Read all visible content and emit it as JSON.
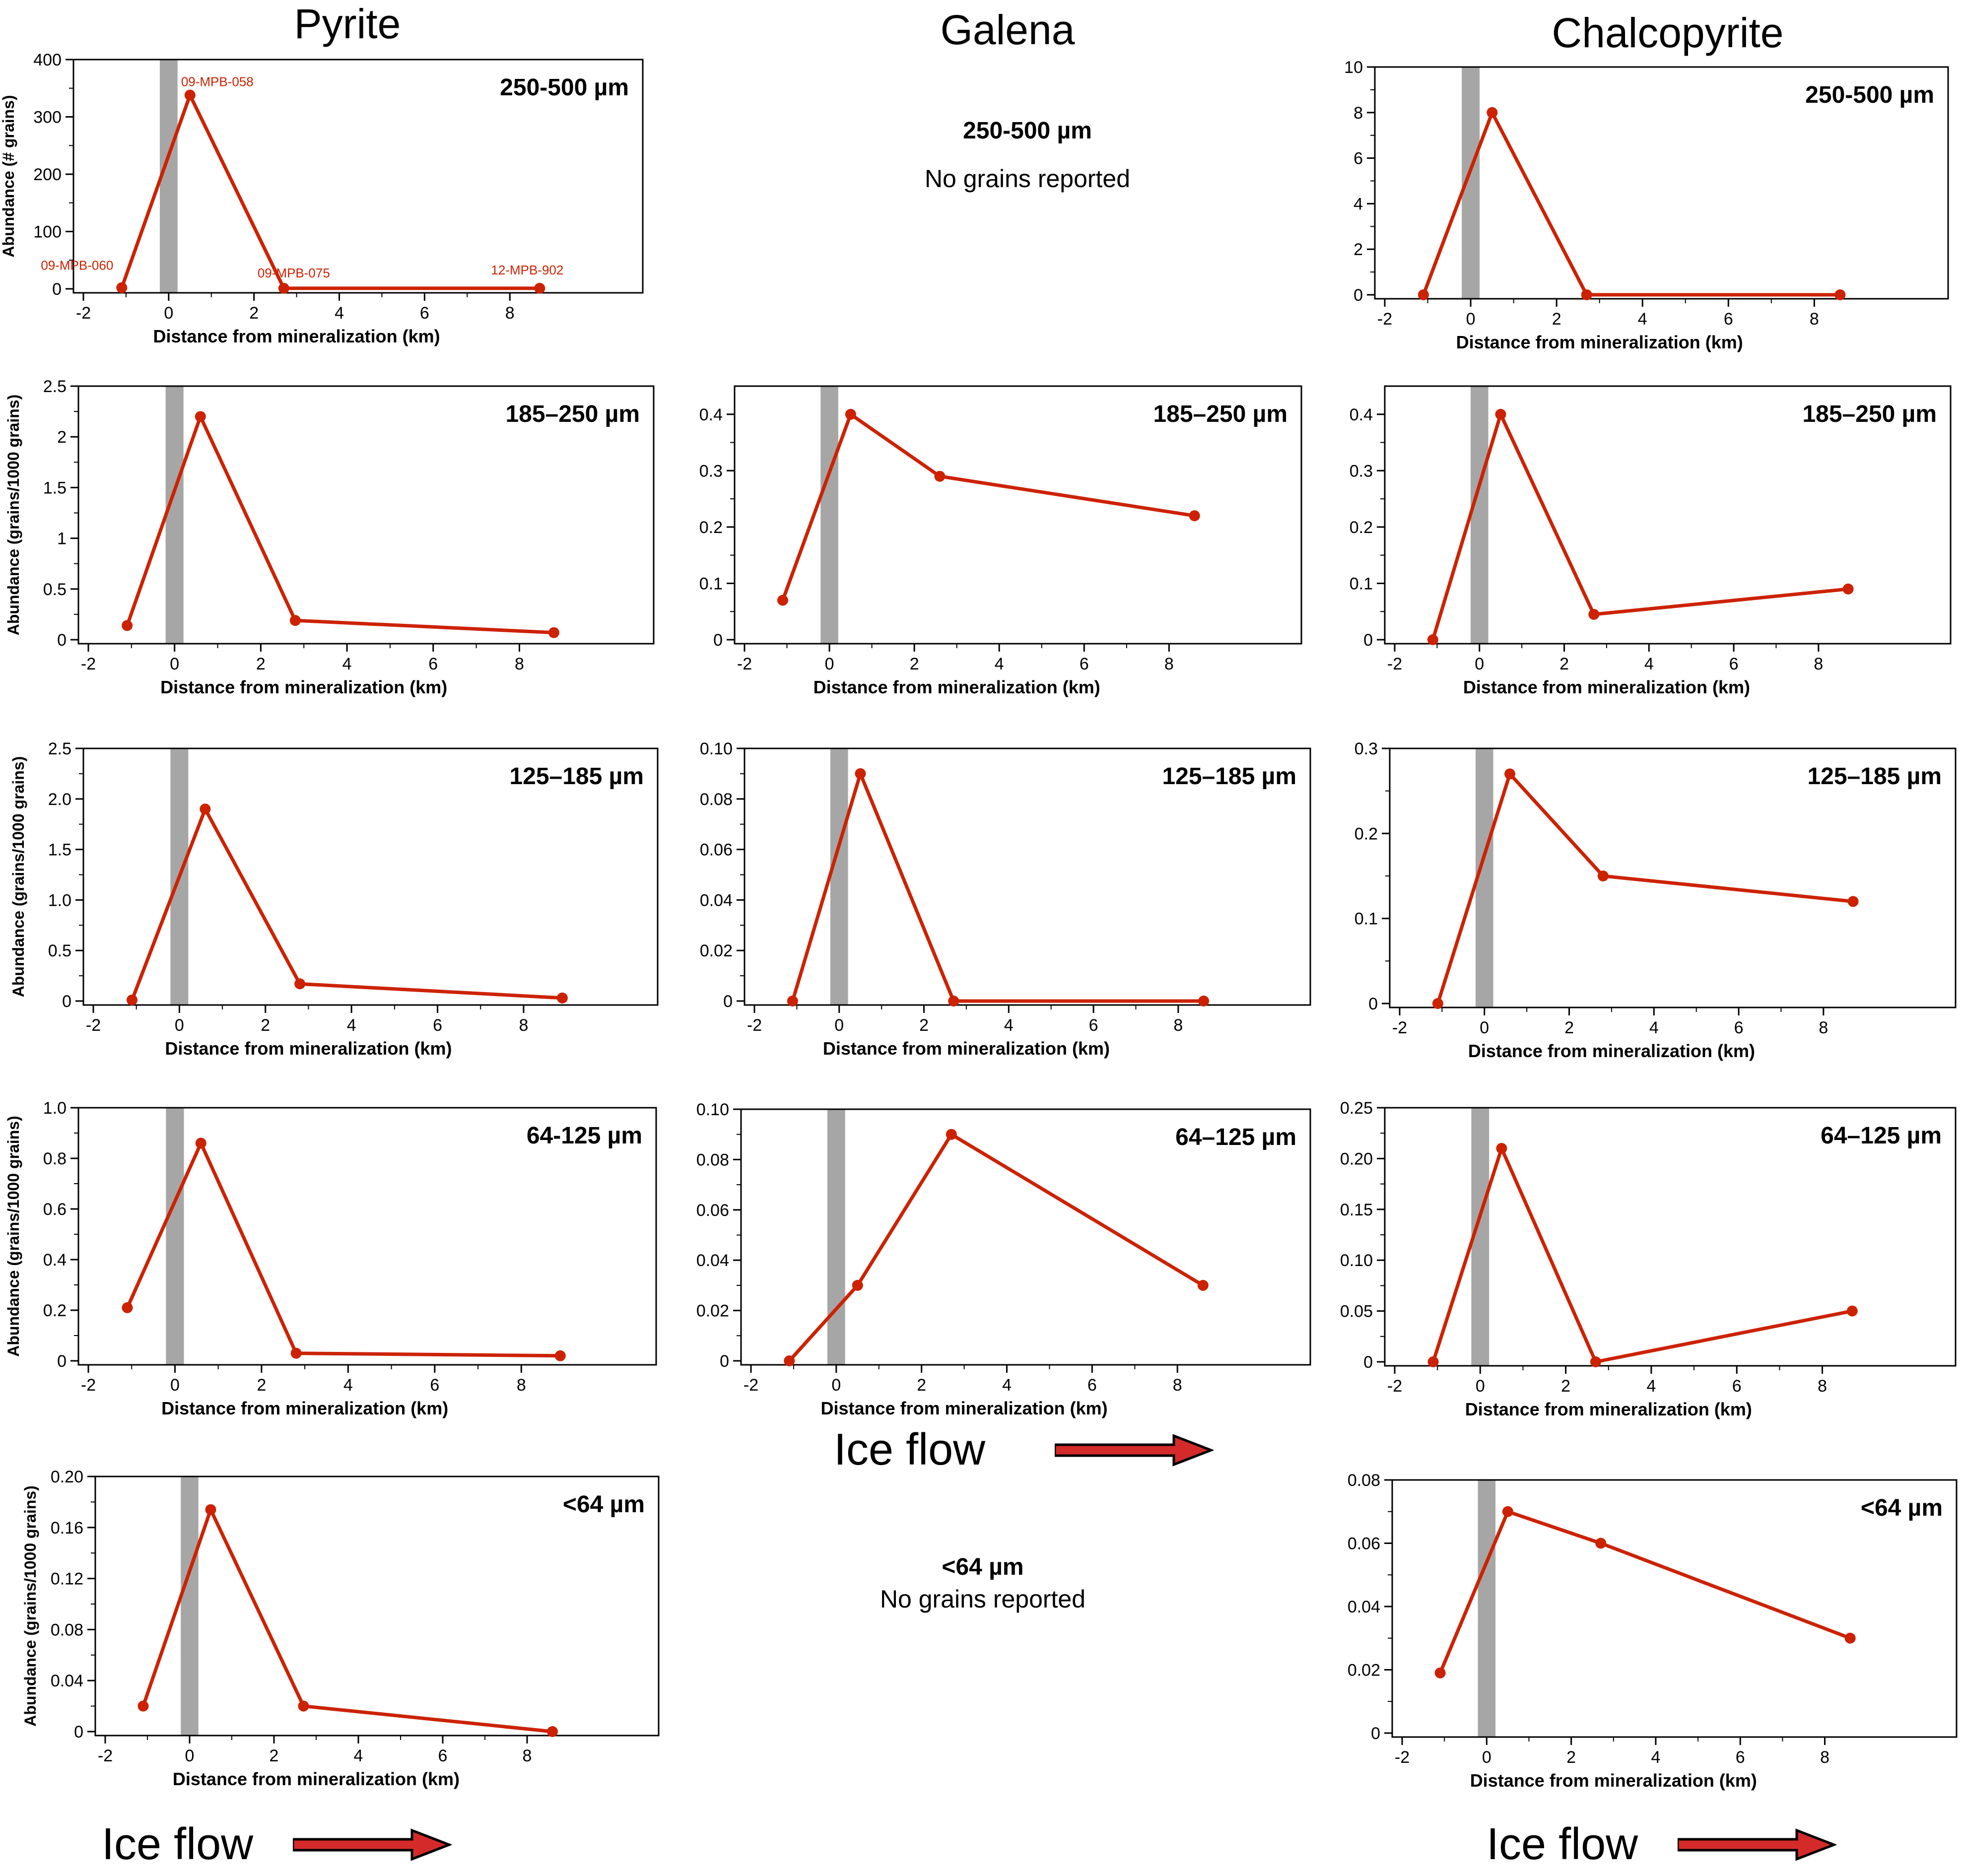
{
  "columns": {
    "pyrite": "Pyrite",
    "galena": "Galena",
    "chalcopyrite": "Chalcopyrite"
  },
  "empty_panels": {
    "galena_250_500": {
      "range": "250-500 µm",
      "message": "No grains reported"
    },
    "galena_lt64": {
      "range": "<64 µm",
      "message": "No grains reported"
    }
  },
  "ice_flow": {
    "label": "Ice flow",
    "color": "#d42a2a"
  },
  "style": {
    "series_color": "#cc2200",
    "mineralization_band_color": "#a6a6a6"
  },
  "chart_data": [
    {
      "id": "pyrite-250-500",
      "type": "line",
      "mineral": "Pyrite",
      "size_fraction": "250-500 µm",
      "xlabel": "Distance from mineralization (km)",
      "ylabel": "Abundance (# grains)",
      "xlim": [
        -2,
        11
      ],
      "ylim": [
        0,
        400
      ],
      "xticks": [
        -2,
        0,
        2,
        4,
        6,
        8
      ],
      "yticks": [
        0,
        100,
        200,
        300,
        400
      ],
      "ytick_labels": [
        "0",
        "100",
        "200",
        "300",
        "400"
      ],
      "mineralization_band": [
        -0.15,
        0.15
      ],
      "x": [
        -1.1,
        0.5,
        2.7,
        8.7
      ],
      "y": [
        2,
        338,
        1,
        1
      ],
      "point_labels": [
        "09-MPB-060",
        "09-MPB-058",
        "09-MPB-075",
        "12-MPB-902"
      ]
    },
    {
      "id": "chalco-250-500",
      "type": "line",
      "mineral": "Chalcopyrite",
      "size_fraction": "250-500 µm",
      "xlabel": "Distance from mineralization (km)",
      "xlim": [
        -2,
        11
      ],
      "ylim": [
        0,
        10
      ],
      "xticks": [
        -2,
        0,
        2,
        4,
        6,
        8
      ],
      "yticks": [
        0,
        2,
        4,
        6,
        8,
        10
      ],
      "ytick_labels": [
        "0",
        "2",
        "4",
        "6",
        "8",
        "10"
      ],
      "mineralization_band": [
        -0.15,
        0.15
      ],
      "x": [
        -1.1,
        0.5,
        2.7,
        8.6
      ],
      "y": [
        0,
        8,
        0,
        0
      ]
    },
    {
      "id": "pyrite-185-250",
      "type": "line",
      "mineral": "Pyrite",
      "size_fraction": "185–250 µm",
      "xlabel": "Distance from mineralization (km)",
      "ylabel": "Abundance (grains/1000 grains)",
      "xlim": [
        -2,
        11
      ],
      "ylim": [
        0,
        2.5
      ],
      "xticks": [
        -2,
        0,
        2,
        4,
        6,
        8
      ],
      "yticks": [
        0,
        0.5,
        1,
        1.5,
        2,
        2.5
      ],
      "ytick_labels": [
        "0",
        "0.5",
        "1",
        "1.5",
        "2",
        "2.5"
      ],
      "mineralization_band": [
        -0.15,
        0.15
      ],
      "x": [
        -1.1,
        0.6,
        2.8,
        8.8
      ],
      "y": [
        0.14,
        2.2,
        0.19,
        0.07
      ]
    },
    {
      "id": "galena-185-250",
      "type": "line",
      "mineral": "Galena",
      "size_fraction": "185–250 µm",
      "xlabel": "Distance from mineralization (km)",
      "xlim": [
        -2,
        11
      ],
      "ylim": [
        0,
        0.45
      ],
      "xticks": [
        -2,
        0,
        2,
        4,
        6,
        8
      ],
      "yticks": [
        0,
        0.1,
        0.2,
        0.3,
        0.4
      ],
      "ytick_labels": [
        "0",
        "0.1",
        "0.2",
        "0.3",
        "0.4"
      ],
      "mineralization_band": [
        -0.15,
        0.15
      ],
      "x": [
        -1.1,
        0.5,
        2.6,
        8.6
      ],
      "y": [
        0.07,
        0.4,
        0.29,
        0.22
      ]
    },
    {
      "id": "chalco-185-250",
      "type": "line",
      "mineral": "Chalcopyrite",
      "size_fraction": "185–250 µm",
      "xlabel": "Distance from mineralization (km)",
      "xlim": [
        -2,
        11
      ],
      "ylim": [
        0,
        0.45
      ],
      "xticks": [
        -2,
        0,
        2,
        4,
        6,
        8
      ],
      "yticks": [
        0,
        0.1,
        0.2,
        0.3,
        0.4
      ],
      "ytick_labels": [
        "0",
        "0.1",
        "0.2",
        "0.3",
        "0.4"
      ],
      "mineralization_band": [
        -0.15,
        0.15
      ],
      "x": [
        -1.1,
        0.5,
        2.7,
        8.7
      ],
      "y": [
        0,
        0.4,
        0.045,
        0.09
      ]
    },
    {
      "id": "pyrite-125-185",
      "type": "line",
      "mineral": "Pyrite",
      "size_fraction": "125–185 µm",
      "xlabel": "Distance from mineralization (km)",
      "ylabel": "Abundance (grains/1000 grains)",
      "xlim": [
        -2,
        11
      ],
      "ylim": [
        0,
        2.5
      ],
      "xticks": [
        -2,
        0,
        2,
        4,
        6,
        8
      ],
      "yticks": [
        0,
        0.5,
        1,
        1.5,
        2,
        2.5
      ],
      "ytick_labels": [
        "0",
        "0.5",
        "1.0",
        "1.5",
        "2.0",
        "2.5"
      ],
      "mineralization_band": [
        -0.15,
        0.15
      ],
      "x": [
        -1.1,
        0.6,
        2.8,
        8.9
      ],
      "y": [
        0.01,
        1.9,
        0.17,
        0.03
      ]
    },
    {
      "id": "galena-125-185",
      "type": "line",
      "mineral": "Galena",
      "size_fraction": "125–185 µm",
      "xlabel": "Distance from mineralization (km)",
      "xlim": [
        -2,
        11
      ],
      "ylim": [
        0,
        0.1
      ],
      "xticks": [
        -2,
        0,
        2,
        4,
        6,
        8
      ],
      "yticks": [
        0,
        0.02,
        0.04,
        0.06,
        0.08,
        0.1
      ],
      "ytick_labels": [
        "0",
        "0.02",
        "0.04",
        "0.06",
        "0.08",
        "0.10"
      ],
      "mineralization_band": [
        -0.15,
        0.15
      ],
      "x": [
        -1.1,
        0.5,
        2.7,
        8.6
      ],
      "y": [
        0,
        0.09,
        0,
        0
      ]
    },
    {
      "id": "chalco-125-185",
      "type": "line",
      "mineral": "Chalcopyrite",
      "size_fraction": "125–185 µm",
      "xlabel": "Distance from mineralization (km)",
      "xlim": [
        -2,
        11
      ],
      "ylim": [
        0,
        0.3
      ],
      "xticks": [
        -2,
        0,
        2,
        4,
        6,
        8
      ],
      "yticks": [
        0,
        0.1,
        0.2,
        0.3
      ],
      "ytick_labels": [
        "0",
        "0.1",
        "0.2",
        "0.3"
      ],
      "mineralization_band": [
        -0.15,
        0.15
      ],
      "x": [
        -1.1,
        0.6,
        2.8,
        8.7
      ],
      "y": [
        0,
        0.27,
        0.15,
        0.12
      ]
    },
    {
      "id": "pyrite-64-125",
      "type": "line",
      "mineral": "Pyrite",
      "size_fraction": "64-125 µm",
      "xlabel": "Distance from mineralization (km)",
      "ylabel": "Abundance (grains/1000 grains)",
      "xlim": [
        -2,
        11
      ],
      "ylim": [
        0,
        1.0
      ],
      "xticks": [
        -2,
        0,
        2,
        4,
        6,
        8
      ],
      "yticks": [
        0,
        0.2,
        0.4,
        0.6,
        0.8,
        1.0
      ],
      "ytick_labels": [
        "0",
        "0.2",
        "0.4",
        "0.6",
        "0.8",
        "1.0"
      ],
      "mineralization_band": [
        -0.15,
        0.15
      ],
      "x": [
        -1.1,
        0.6,
        2.8,
        8.9
      ],
      "y": [
        0.21,
        0.86,
        0.03,
        0.02
      ]
    },
    {
      "id": "galena-64-125",
      "type": "line",
      "mineral": "Galena",
      "size_fraction": "64–125 µm",
      "xlabel": "Distance from mineralization (km)",
      "xlim": [
        -2,
        11
      ],
      "ylim": [
        0,
        0.1
      ],
      "xticks": [
        -2,
        0,
        2,
        4,
        6,
        8
      ],
      "yticks": [
        0,
        0.02,
        0.04,
        0.06,
        0.08,
        0.1
      ],
      "ytick_labels": [
        "0",
        "0.02",
        "0.04",
        "0.06",
        "0.08",
        "0.10"
      ],
      "mineralization_band": [
        -0.15,
        0.15
      ],
      "x": [
        -1.1,
        0.5,
        2.7,
        8.6
      ],
      "y": [
        0,
        0.03,
        0.09,
        0.03
      ]
    },
    {
      "id": "chalco-64-125",
      "type": "line",
      "mineral": "Chalcopyrite",
      "size_fraction": "64–125 µm",
      "xlabel": "Distance from mineralization (km)",
      "xlim": [
        -2,
        11
      ],
      "ylim": [
        0,
        0.25
      ],
      "xticks": [
        -2,
        0,
        2,
        4,
        6,
        8
      ],
      "yticks": [
        0,
        0.05,
        0.1,
        0.15,
        0.2,
        0.25
      ],
      "ytick_labels": [
        "0",
        "0.05",
        "0.10",
        "0.15",
        "0.20",
        "0.25"
      ],
      "mineralization_band": [
        -0.15,
        0.15
      ],
      "x": [
        -1.1,
        0.5,
        2.7,
        8.7
      ],
      "y": [
        0,
        0.21,
        0,
        0.05
      ]
    },
    {
      "id": "pyrite-lt64",
      "type": "line",
      "mineral": "Pyrite",
      "size_fraction": "<64 µm",
      "xlabel": "Distance from mineralization (km)",
      "ylabel": "Abundance (grains/1000 grains)",
      "xlim": [
        -2,
        11
      ],
      "ylim": [
        0,
        0.2
      ],
      "xticks": [
        -2,
        0,
        2,
        4,
        6,
        8
      ],
      "yticks": [
        0,
        0.04,
        0.08,
        0.12,
        0.16,
        0.2
      ],
      "ytick_labels": [
        "0",
        "0.04",
        "0.08",
        "0.12",
        "0.16",
        "0.20"
      ],
      "mineralization_band": [
        -0.15,
        0.15
      ],
      "x": [
        -1.1,
        0.5,
        2.7,
        8.6
      ],
      "y": [
        0.02,
        0.174,
        0.02,
        0
      ]
    },
    {
      "id": "chalco-lt64",
      "type": "line",
      "mineral": "Chalcopyrite",
      "size_fraction": "<64 µm",
      "xlabel": "Distance from mineralization (km)",
      "xlim": [
        -2,
        11
      ],
      "ylim": [
        0,
        0.08
      ],
      "xticks": [
        -2,
        0,
        2,
        4,
        6,
        8
      ],
      "yticks": [
        0,
        0.02,
        0.04,
        0.06,
        0.08
      ],
      "ytick_labels": [
        "0",
        "0.02",
        "0.04",
        "0.06",
        "0.08"
      ],
      "mineralization_band": [
        -0.15,
        0.15
      ],
      "x": [
        -1.1,
        0.5,
        2.7,
        8.6
      ],
      "y": [
        0.019,
        0.07,
        0.06,
        0.03
      ]
    }
  ]
}
